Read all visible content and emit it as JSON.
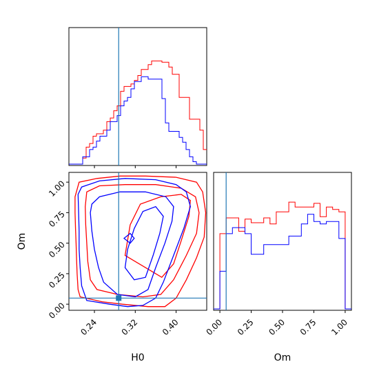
{
  "colors": {
    "series_a": "#ff0000",
    "series_b": "#0000ff",
    "truth": "#1f77b4",
    "axes": "#000000"
  },
  "chart_data": [
    {
      "type": "line",
      "panel": "H0 marginal histogram",
      "xlim": [
        0.19,
        0.46
      ],
      "ylim": [
        0,
        1
      ],
      "x_ticks": [
        0.24,
        0.32,
        0.4
      ],
      "bin_edges": [
        0.19,
        0.1968,
        0.2035,
        0.2102,
        0.217,
        0.2238,
        0.2305,
        0.2372,
        0.244,
        0.2508,
        0.2575,
        0.2642,
        0.271,
        0.2778,
        0.2845,
        0.2912,
        0.298,
        0.3048,
        0.3115,
        0.3182,
        0.325,
        0.3318,
        0.3385,
        0.3452,
        0.352,
        0.3587,
        0.3655,
        0.3722,
        0.379,
        0.3858,
        0.3925,
        0.3992,
        0.406,
        0.4128,
        0.4195,
        0.4262,
        0.433,
        0.4398,
        0.4465,
        0.4532,
        0.46
      ],
      "series": [
        {
          "color_key": "series_a",
          "values": [
            0.0,
            0.0,
            0.0,
            0.0,
            0.05,
            0.14,
            0.17,
            0.23,
            0.25,
            0.25,
            0.28,
            0.35,
            0.38,
            0.44,
            0.48,
            0.6,
            0.64,
            0.64,
            0.66,
            0.69,
            0.73,
            0.78,
            0.78,
            0.82,
            0.85,
            0.85,
            0.85,
            0.84,
            0.84,
            0.8,
            0.74,
            0.74,
            0.55,
            0.55,
            0.55,
            0.37,
            0.37,
            0.37,
            0.28,
            0.12
          ]
        },
        {
          "color_key": "series_b",
          "values": [
            0.0,
            0.0,
            0.0,
            0.0,
            0.06,
            0.06,
            0.12,
            0.14,
            0.19,
            0.23,
            0.23,
            0.28,
            0.35,
            0.35,
            0.4,
            0.48,
            0.52,
            0.55,
            0.62,
            0.68,
            0.68,
            0.72,
            0.72,
            0.7,
            0.7,
            0.7,
            0.7,
            0.54,
            0.34,
            0.27,
            0.27,
            0.27,
            0.22,
            0.18,
            0.12,
            0.06,
            0.02,
            0.0,
            0.0,
            0.0
          ]
        }
      ],
      "truth_x": 0.2875
    },
    {
      "type": "scatter",
      "panel": "H0 vs Om contour",
      "xlabel": "H0",
      "ylabel": "Om",
      "xlim": [
        0.19,
        0.46
      ],
      "ylim": [
        -0.05,
        1.08
      ],
      "x_ticks": [
        0.24,
        0.32,
        0.4
      ],
      "y_ticks": [
        0.0,
        0.25,
        0.5,
        0.75,
        1.0
      ],
      "truth": {
        "x": 0.2875,
        "y": 0.05
      },
      "contours": [
        {
          "color_key": "series_a",
          "points": [
            [
              0.202,
              0.88
            ],
            [
              0.202,
              0.75
            ],
            [
              0.203,
              0.62
            ],
            [
              0.204,
              0.5
            ],
            [
              0.205,
              0.37
            ],
            [
              0.206,
              0.25
            ],
            [
              0.208,
              0.12
            ],
            [
              0.212,
              0.06
            ],
            [
              0.255,
              0.02
            ],
            [
              0.295,
              0.0
            ],
            [
              0.345,
              -0.02
            ],
            [
              0.378,
              -0.02
            ],
            [
              0.4,
              0.05
            ],
            [
              0.42,
              0.2
            ],
            [
              0.44,
              0.38
            ],
            [
              0.455,
              0.55
            ],
            [
              0.458,
              0.75
            ],
            [
              0.452,
              0.92
            ],
            [
              0.44,
              1.0
            ],
            [
              0.4,
              1.04
            ],
            [
              0.34,
              1.05
            ],
            [
              0.29,
              1.05
            ],
            [
              0.245,
              1.03
            ],
            [
              0.21,
              1.0
            ],
            [
              0.202,
              0.88
            ]
          ]
        },
        {
          "color_key": "series_a",
          "points": [
            [
              0.222,
              0.8
            ],
            [
              0.223,
              0.65
            ],
            [
              0.225,
              0.5
            ],
            [
              0.227,
              0.35
            ],
            [
              0.232,
              0.2
            ],
            [
              0.245,
              0.12
            ],
            [
              0.285,
              0.08
            ],
            [
              0.335,
              0.06
            ],
            [
              0.37,
              0.08
            ],
            [
              0.395,
              0.2
            ],
            [
              0.42,
              0.4
            ],
            [
              0.44,
              0.58
            ],
            [
              0.445,
              0.75
            ],
            [
              0.438,
              0.88
            ],
            [
              0.41,
              0.95
            ],
            [
              0.36,
              0.98
            ],
            [
              0.3,
              0.98
            ],
            [
              0.25,
              0.97
            ],
            [
              0.225,
              0.92
            ],
            [
              0.222,
              0.8
            ]
          ]
        },
        {
          "color_key": "series_a",
          "points": [
            [
              0.3,
              0.4
            ],
            [
              0.34,
              0.3
            ],
            [
              0.372,
              0.22
            ],
            [
              0.395,
              0.33
            ],
            [
              0.41,
              0.52
            ],
            [
              0.425,
              0.72
            ],
            [
              0.428,
              0.85
            ],
            [
              0.41,
              0.9
            ],
            [
              0.37,
              0.88
            ],
            [
              0.33,
              0.82
            ],
            [
              0.31,
              0.65
            ],
            [
              0.3,
              0.4
            ]
          ]
        },
        {
          "color_key": "series_b",
          "points": [
            [
              0.208,
              0.9
            ],
            [
              0.209,
              0.75
            ],
            [
              0.21,
              0.6
            ],
            [
              0.21,
              0.45
            ],
            [
              0.212,
              0.3
            ],
            [
              0.215,
              0.15
            ],
            [
              0.225,
              0.03
            ],
            [
              0.27,
              0.0
            ],
            [
              0.305,
              -0.02
            ],
            [
              0.335,
              -0.01
            ],
            [
              0.36,
              0.05
            ],
            [
              0.375,
              0.18
            ],
            [
              0.395,
              0.4
            ],
            [
              0.415,
              0.62
            ],
            [
              0.428,
              0.8
            ],
            [
              0.42,
              0.92
            ],
            [
              0.4,
              0.98
            ],
            [
              0.36,
              1.02
            ],
            [
              0.3,
              1.03
            ],
            [
              0.25,
              1.01
            ],
            [
              0.215,
              0.96
            ],
            [
              0.208,
              0.9
            ]
          ]
        },
        {
          "color_key": "series_b",
          "points": [
            [
              0.232,
              0.75
            ],
            [
              0.235,
              0.6
            ],
            [
              0.24,
              0.45
            ],
            [
              0.248,
              0.3
            ],
            [
              0.258,
              0.18
            ],
            [
              0.285,
              0.08
            ],
            [
              0.32,
              0.06
            ],
            [
              0.345,
              0.12
            ],
            [
              0.36,
              0.3
            ],
            [
              0.378,
              0.5
            ],
            [
              0.392,
              0.68
            ],
            [
              0.395,
              0.8
            ],
            [
              0.38,
              0.88
            ],
            [
              0.34,
              0.92
            ],
            [
              0.29,
              0.92
            ],
            [
              0.25,
              0.88
            ],
            [
              0.235,
              0.82
            ],
            [
              0.232,
              0.75
            ]
          ]
        },
        {
          "color_key": "series_b",
          "points": [
            [
              0.3,
              0.3
            ],
            [
              0.318,
              0.2
            ],
            [
              0.34,
              0.22
            ],
            [
              0.355,
              0.4
            ],
            [
              0.368,
              0.58
            ],
            [
              0.375,
              0.72
            ],
            [
              0.36,
              0.8
            ],
            [
              0.335,
              0.76
            ],
            [
              0.318,
              0.62
            ],
            [
              0.305,
              0.45
            ],
            [
              0.3,
              0.3
            ]
          ]
        },
        {
          "color_key": "series_b",
          "points": [
            [
              0.298,
              0.54
            ],
            [
              0.31,
              0.5
            ],
            [
              0.318,
              0.54
            ],
            [
              0.31,
              0.58
            ],
            [
              0.298,
              0.54
            ]
          ]
        }
      ]
    },
    {
      "type": "line",
      "panel": "Om marginal histogram",
      "xlabel": "Om",
      "xlim": [
        -0.05,
        1.05
      ],
      "ylim": [
        0,
        1
      ],
      "x_ticks": [
        0.0,
        0.25,
        0.5,
        0.75,
        1.0
      ],
      "bin_edges": [
        -0.05,
        0.0,
        0.05,
        0.1,
        0.15,
        0.2,
        0.25,
        0.3,
        0.35,
        0.4,
        0.45,
        0.5,
        0.55,
        0.6,
        0.65,
        0.7,
        0.75,
        0.8,
        0.85,
        0.9,
        0.95,
        1.0,
        1.05
      ],
      "series": [
        {
          "color_key": "series_a",
          "values": [
            0.0,
            0.62,
            0.75,
            0.75,
            0.64,
            0.74,
            0.71,
            0.71,
            0.75,
            0.7,
            0.8,
            0.8,
            0.88,
            0.84,
            0.84,
            0.84,
            0.87,
            0.76,
            0.84,
            0.82,
            0.8,
            0.0
          ]
        },
        {
          "color_key": "series_b",
          "values": [
            0.0,
            0.31,
            0.62,
            0.67,
            0.67,
            0.62,
            0.45,
            0.45,
            0.53,
            0.53,
            0.53,
            0.53,
            0.6,
            0.6,
            0.7,
            0.78,
            0.72,
            0.7,
            0.72,
            0.72,
            0.58,
            0.0
          ]
        }
      ],
      "truth_x": 0.05
    }
  ]
}
